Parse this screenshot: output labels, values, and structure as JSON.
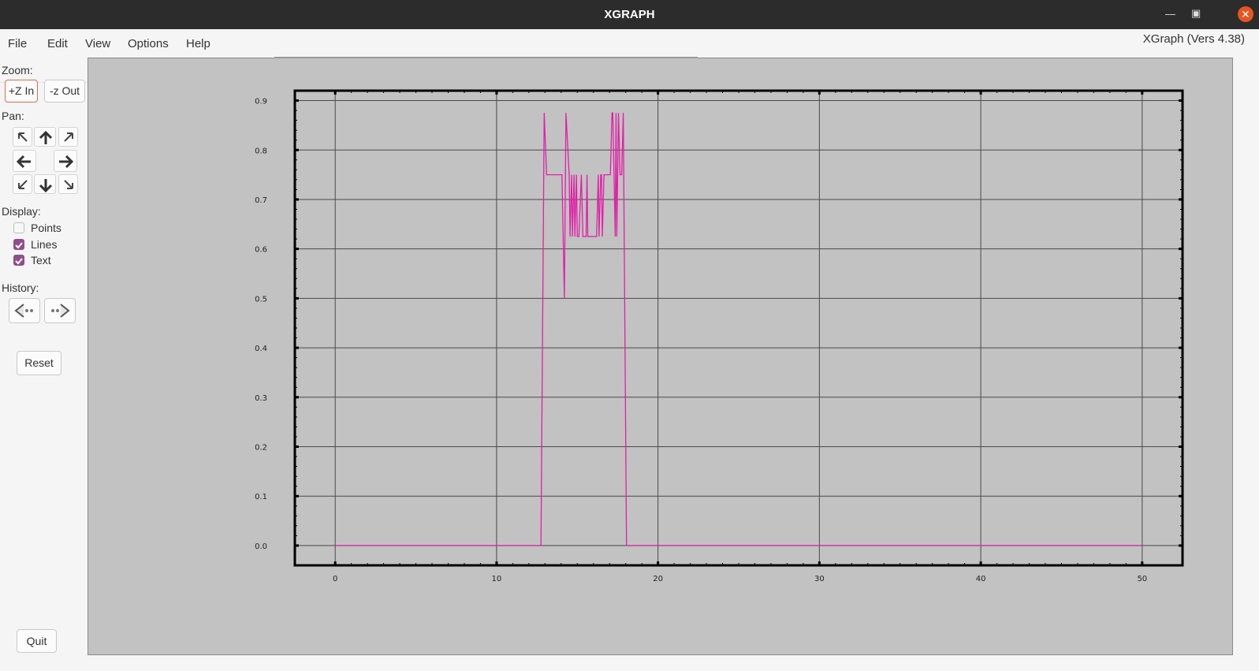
{
  "window": {
    "title": "XGRAPH",
    "minimize_icon": "minimize-icon",
    "maximize_icon": "maximize-icon",
    "close_icon": "close-icon"
  },
  "menu": {
    "items": [
      "File",
      "Edit",
      "View",
      "Options",
      "Help"
    ]
  },
  "version": "XGraph (Vers 4.38)",
  "sidebar": {
    "zoom_label": "Zoom:",
    "zoom_in": "+Z In",
    "zoom_out": "-z Out",
    "pan_label": "Pan:",
    "display_label": "Display:",
    "display_options": [
      {
        "label": "Points",
        "checked": false
      },
      {
        "label": "Lines",
        "checked": true
      },
      {
        "label": "Text",
        "checked": true
      }
    ],
    "history_label": "History:",
    "history_back_icon": "history-back-icon",
    "history_forward_icon": "history-forward-icon",
    "reset": "Reset",
    "quit": "Quit"
  },
  "colors": {
    "line": "#e020a8",
    "plot_bg": "#c2c2c2",
    "accent": "#924d8b",
    "close": "#e95420"
  },
  "chart_data": {
    "type": "line",
    "title": "",
    "xlabel": "",
    "ylabel": "",
    "xlim": [
      -2.5,
      52.5
    ],
    "ylim": [
      -0.04,
      0.92
    ],
    "grid": true,
    "x_ticks": [
      0,
      10,
      20,
      30,
      40,
      50
    ],
    "y_ticks": [
      0.0,
      0.1,
      0.2,
      0.3,
      0.4,
      0.5,
      0.6,
      0.7,
      0.8,
      0.9
    ],
    "x_tick_labels": [
      "0",
      "10",
      "20",
      "30",
      "40",
      "50"
    ],
    "y_tick_labels": [
      "0.0",
      "0.1",
      "0.2",
      "0.3",
      "0.4",
      "0.5",
      "0.6",
      "0.7",
      "0.8",
      "0.9"
    ],
    "series": [
      {
        "color": "#e020a8",
        "x": [
          0,
          12.75,
          12.95,
          13.1,
          14.05,
          14.2,
          14.3,
          14.5,
          14.55,
          14.65,
          14.7,
          14.8,
          14.85,
          14.95,
          15.0,
          15.05,
          15.1,
          15.25,
          15.35,
          15.45,
          15.55,
          15.6,
          15.65,
          15.75,
          15.8,
          15.9,
          16.2,
          16.3,
          16.35,
          16.45,
          16.5,
          16.55,
          16.65,
          16.75,
          17.05,
          17.15,
          17.2,
          17.35,
          17.4,
          17.45,
          17.55,
          17.65,
          17.75,
          17.85,
          18.05,
          50
        ],
        "y": [
          0.0,
          0.0,
          0.875,
          0.75,
          0.75,
          0.5,
          0.875,
          0.75,
          0.625,
          0.75,
          0.625,
          0.75,
          0.625,
          0.75,
          0.625,
          0.625,
          0.625,
          0.75,
          0.625,
          0.625,
          0.625,
          0.75,
          0.625,
          0.625,
          0.625,
          0.625,
          0.625,
          0.75,
          0.625,
          0.75,
          0.75,
          0.625,
          0.75,
          0.75,
          0.75,
          0.875,
          0.875,
          0.625,
          0.875,
          0.625,
          0.875,
          0.75,
          0.75,
          0.875,
          0.0,
          0.0
        ]
      }
    ]
  }
}
